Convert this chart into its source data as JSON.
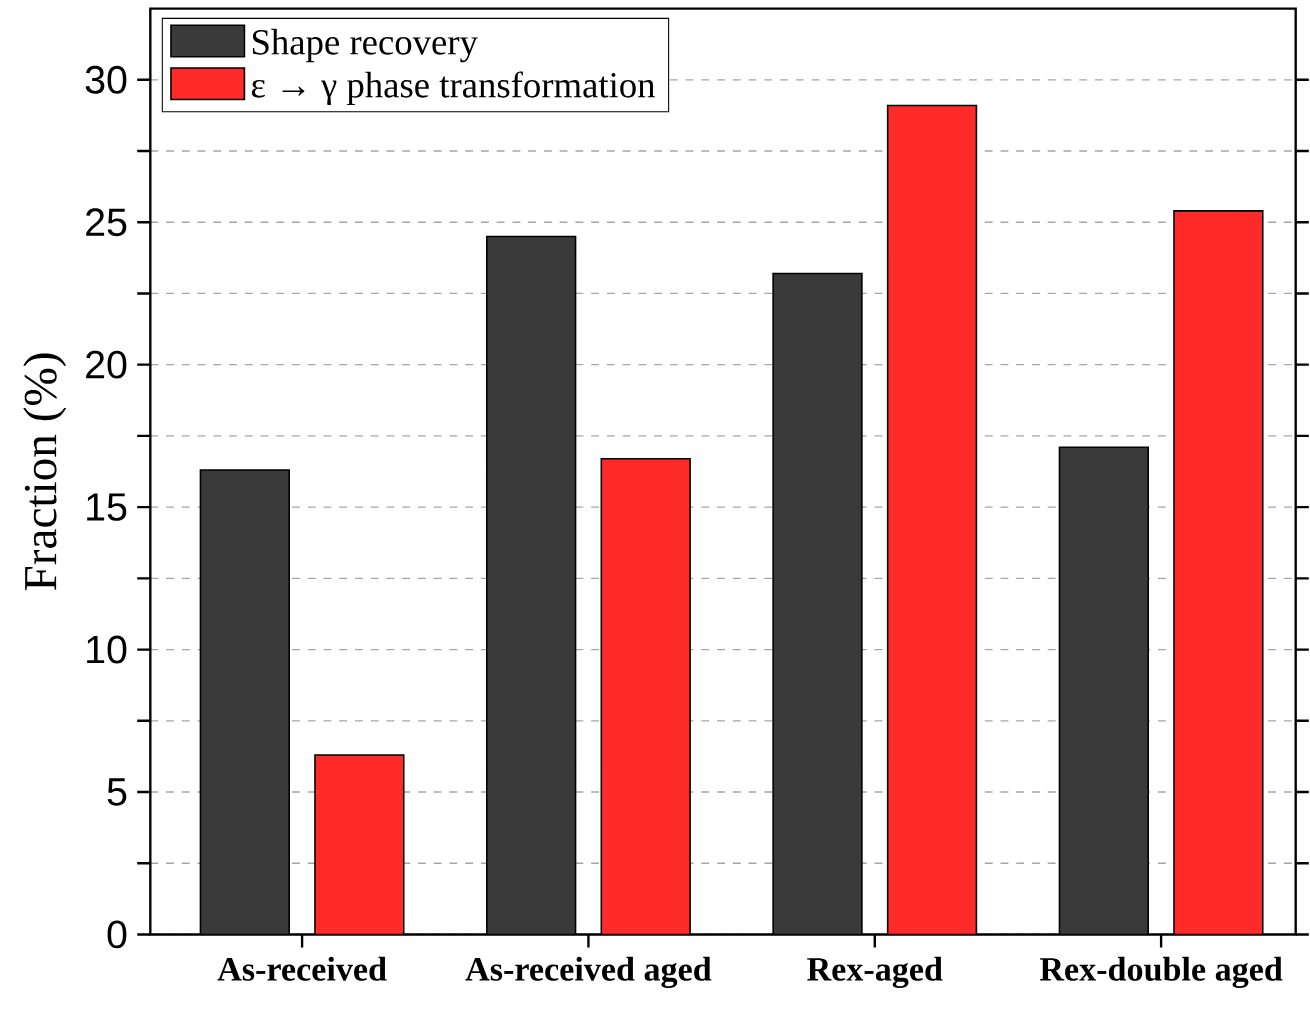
{
  "chart_data": {
    "type": "bar",
    "ylabel": "Fraction (%)",
    "categories": [
      "As-received",
      "As-received aged",
      "Rex-aged",
      "Rex-double aged"
    ],
    "series": [
      {
        "name": "Shape recovery",
        "color": "#3a3a3a",
        "values": [
          16.3,
          24.5,
          23.2,
          17.1
        ]
      },
      {
        "name": "ε → γ phase transformation",
        "color": "#ff2a2a",
        "values": [
          6.3,
          16.7,
          29.1,
          25.4
        ]
      }
    ],
    "ylim": [
      0,
      32.5
    ],
    "yticks": [
      0,
      {
        "value": 2.5,
        "label": null
      },
      5,
      {
        "value": 7.5,
        "label": null
      },
      10,
      {
        "value": 12.5,
        "label": null
      },
      15,
      {
        "value": 17.5,
        "label": null
      },
      20,
      {
        "value": 22.5,
        "label": null
      },
      25,
      {
        "value": 27.5,
        "label": null
      },
      30
    ],
    "grid": "y",
    "legend": "top left"
  }
}
